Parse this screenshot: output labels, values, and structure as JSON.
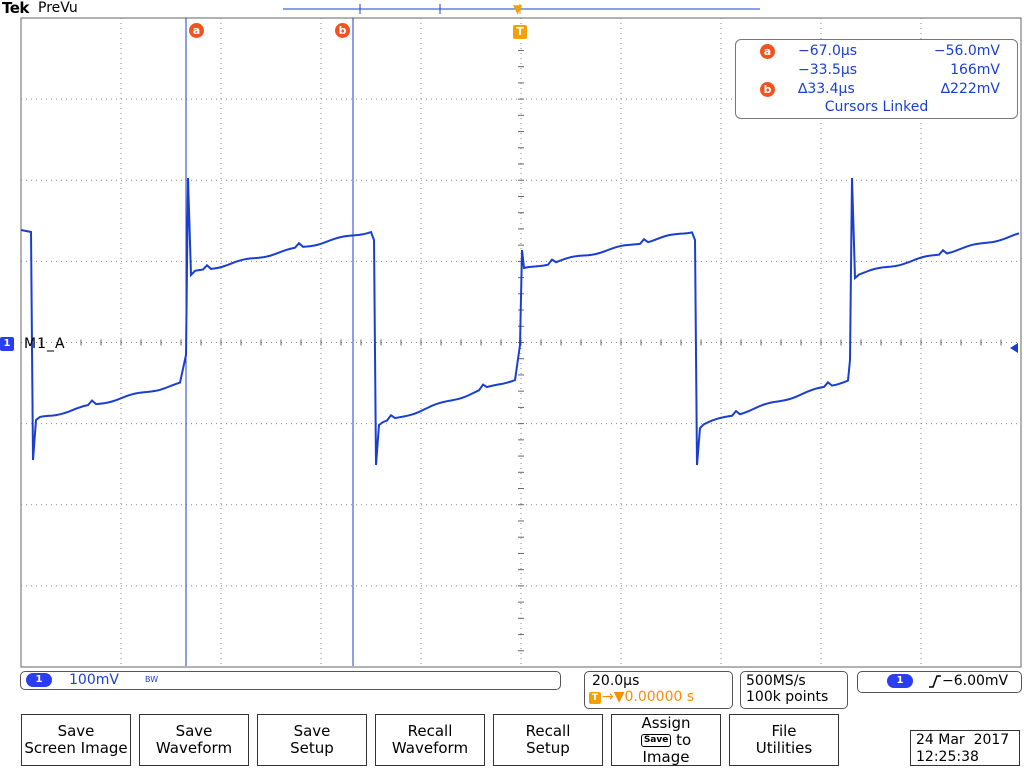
{
  "header": {
    "brand": "Tek",
    "mode": "PreVu"
  },
  "cursors": {
    "a_marker": "a",
    "b_marker": "b",
    "trigger_marker": "T"
  },
  "readout": {
    "a_time": "−67.0µs",
    "a_volt": "−56.0mV",
    "b_time": "−33.5µs",
    "b_volt": "166mV",
    "delta_time": "∆33.4µs",
    "delta_volt": "∆222mV",
    "status": "Cursors Linked"
  },
  "channel": {
    "number": "1",
    "label": "M1_A",
    "scale": "100mV",
    "bw": "BW",
    "color": "#1a3fd0"
  },
  "timebase": {
    "scale": "20.0µs",
    "trigger_icon": "T",
    "position": "→▼0.00000 s"
  },
  "acquisition": {
    "sample_rate": "500MS/s",
    "record_length": "100k points"
  },
  "trigger": {
    "channel": "1",
    "slope_icon": "rising-edge",
    "level": "−6.00mV"
  },
  "softkeys": [
    {
      "line1": "Save",
      "line2": "Screen Image"
    },
    {
      "line1": "Save",
      "line2": "Waveform"
    },
    {
      "line1": "Save",
      "line2": "Setup"
    },
    {
      "line1": "Recall",
      "line2": "Waveform"
    },
    {
      "line1": "Recall",
      "line2": "Setup"
    },
    {
      "line1": "Assign",
      "badge": "Save",
      "line2": "to",
      "line3": "Image"
    },
    {
      "line1": "File",
      "line2": "Utilities"
    }
  ],
  "datetime": {
    "date": "24 Mar  2017",
    "time": "12:25:38"
  },
  "colors": {
    "trace": "#1a3fd0",
    "cursor_marker": "#f0531f",
    "trigger": "#f5a000",
    "grid": "#666666"
  }
}
